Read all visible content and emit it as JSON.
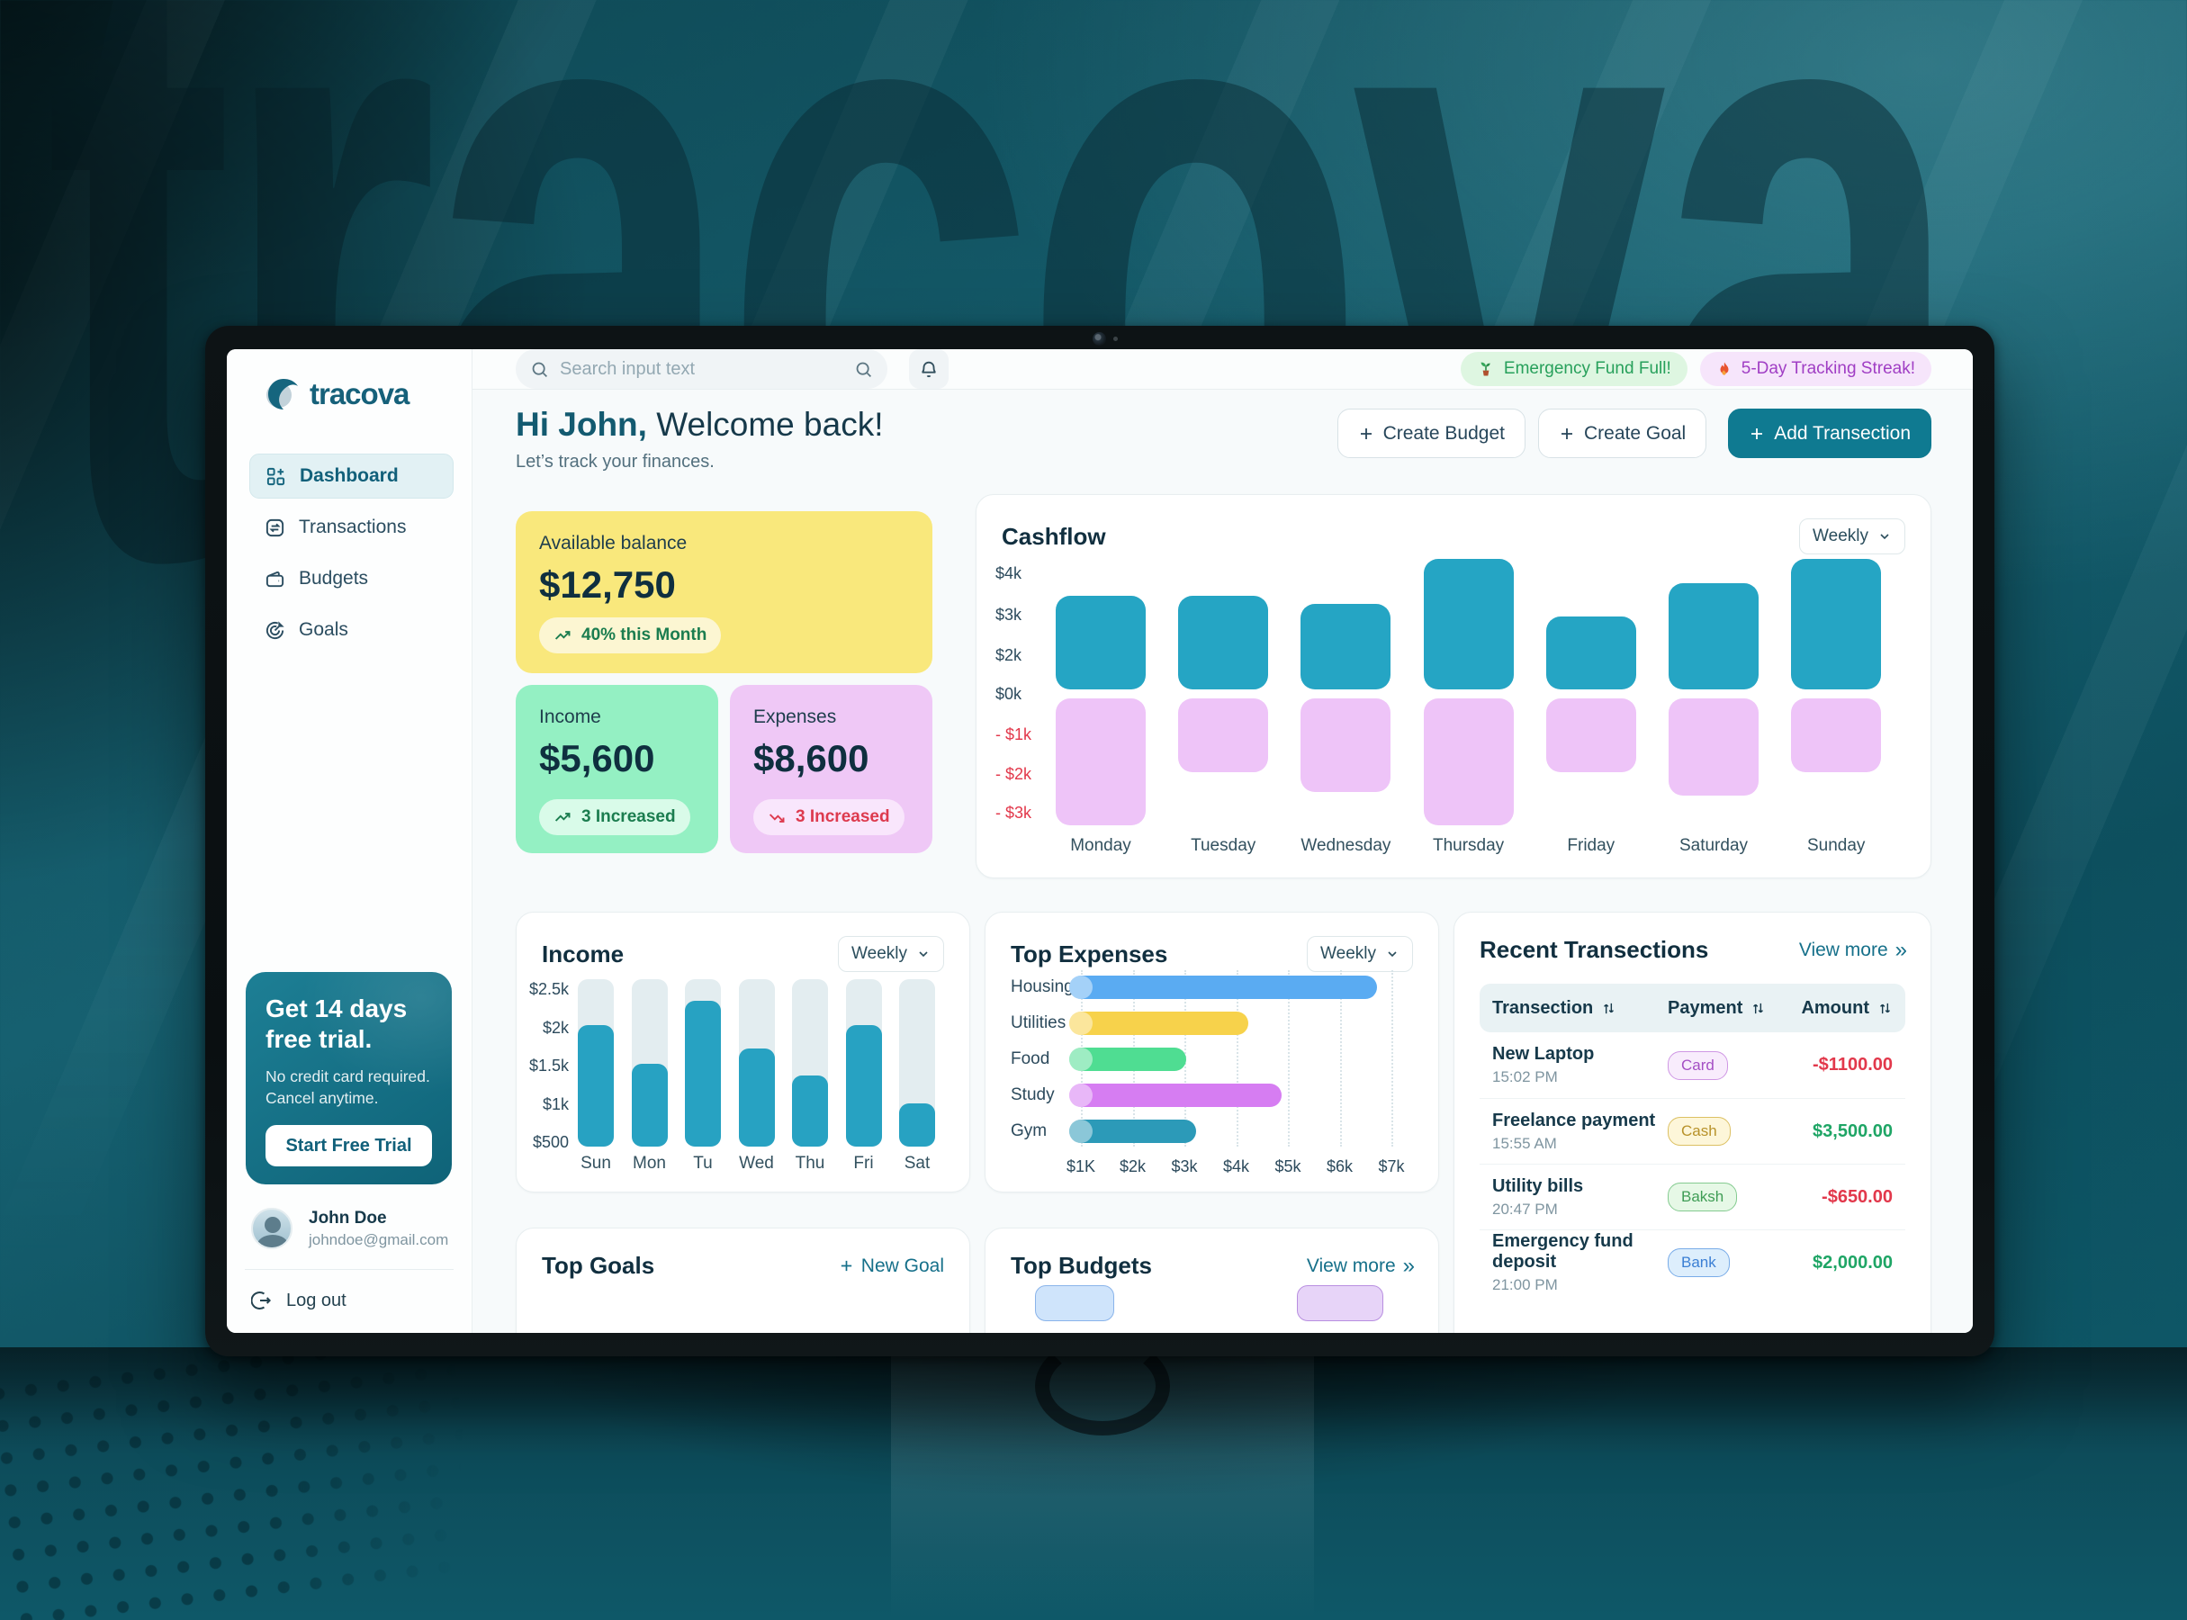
{
  "background": {
    "watermark": "tracova"
  },
  "sidebar": {
    "logo_text": "tracova",
    "nav": [
      {
        "label": "Dashboard",
        "active": true
      },
      {
        "label": "Transactions",
        "active": false
      },
      {
        "label": "Budgets",
        "active": false
      },
      {
        "label": "Goals",
        "active": false
      }
    ],
    "trial": {
      "title_line1": "Get 14 days",
      "title_line2": "free trial.",
      "body_line1": "No credit card required.",
      "body_line2": "Cancel anytime.",
      "button": "Start Free Trial"
    },
    "user": {
      "name": "John Doe",
      "email": "johndoe@gmail.com"
    },
    "logout_label": "Log out"
  },
  "topbar": {
    "search_placeholder": "Search input text",
    "badges": [
      {
        "icon": "plant-icon",
        "label": "Emergency Fund Full!",
        "type": "green"
      },
      {
        "icon": "flame-icon",
        "label": "5-Day Tracking Streak!",
        "type": "purple"
      }
    ]
  },
  "header": {
    "greeting_name": "Hi John,",
    "greeting_rest": " Welcome back!",
    "subtitle": "Let’s track your finances.",
    "buttons": {
      "create_budget": "Create Budget",
      "create_goal": "Create Goal",
      "add_transaction": "Add Transection"
    }
  },
  "summary_cards": {
    "balance": {
      "label": "Available balance",
      "value": "$12,750",
      "badge": "40% this Month",
      "trend": "up"
    },
    "income": {
      "label": "Income",
      "value": "$5,600",
      "badge": "3 Increased",
      "trend": "up"
    },
    "expenses": {
      "label": "Expenses",
      "value": "$8,600",
      "badge": "3 Increased",
      "trend": "down"
    }
  },
  "chart_data": [
    {
      "id": "cashflow",
      "type": "bar",
      "title": "Cashflow",
      "period_selector": "Weekly",
      "categories": [
        "Monday",
        "Tuesday",
        "Wednesday",
        "Thursday",
        "Friday",
        "Saturday",
        "Sunday"
      ],
      "series": [
        {
          "name": "inflow",
          "color": "#25a5c4",
          "values": [
            3350,
            3350,
            3150,
            4250,
            2850,
            3650,
            4250
          ]
        },
        {
          "name": "outflow",
          "color": "#eec4f8",
          "values": [
            -3200,
            -1850,
            -2350,
            -3200,
            -1850,
            -2450,
            -1850
          ]
        }
      ],
      "yticks_pos": [
        {
          "label": "$4k",
          "value": 4000
        },
        {
          "label": "$3k",
          "value": 3000
        },
        {
          "label": "$2k",
          "value": 2000
        },
        {
          "label": "$0k",
          "value": 0
        }
      ],
      "yticks_neg": [
        {
          "label": "- $1k",
          "value": -1000
        },
        {
          "label": "- $2k",
          "value": -2000
        },
        {
          "label": "- $3k",
          "value": -3000
        }
      ],
      "legend": "none",
      "grid": false
    },
    {
      "id": "income",
      "type": "bar",
      "title": "Income",
      "period_selector": "Weekly",
      "categories": [
        "Sun",
        "Mon",
        "Tu",
        "Wed",
        "Thu",
        "Fri",
        "Sat"
      ],
      "values": [
        2050,
        1550,
        2350,
        1750,
        1400,
        2050,
        1050
      ],
      "yticks": [
        "$2.5k",
        "$2k",
        "$1.5k",
        "$1k",
        "$500"
      ],
      "ymin": 500,
      "ymax": 2630,
      "bar_color": "#27a2c2",
      "track_color": "#e3edf0",
      "grid": false
    },
    {
      "id": "top_expenses",
      "type": "bar",
      "title": "Top Expenses",
      "period_selector": "Weekly",
      "categories": [
        "Housing",
        "Utilities",
        "Food",
        "Study",
        "Gym"
      ],
      "values": [
        6500,
        4000,
        2800,
        4650,
        3000
      ],
      "colors": [
        "#5aabf2",
        "#f7d24b",
        "#4fdd92",
        "#d67df2",
        "#2c9ab8"
      ],
      "xticks": [
        "$1K",
        "$2k",
        "$3k",
        "$4k",
        "$5k",
        "$6k",
        "$7k"
      ],
      "xmin": 1000,
      "xmax": 7000,
      "orientation": "horizontal",
      "grid": true
    }
  ],
  "transactions": {
    "title": "Recent Transections",
    "view_more": "View more",
    "columns": [
      "Transection",
      "Payment",
      "Amount"
    ],
    "rows": [
      {
        "name": "New Laptop",
        "time": "15:02 PM",
        "method": "Card",
        "method_color": "purple",
        "amount": "-$1100.00",
        "amount_color": "red"
      },
      {
        "name": "Freelance payment",
        "time": "15:55 AM",
        "method": "Cash",
        "method_color": "yellow",
        "amount": "$3,500.00",
        "amount_color": "green"
      },
      {
        "name": "Utility bills",
        "time": "20:47 PM",
        "method": "Baksh",
        "method_color": "green",
        "amount": "-$650.00",
        "amount_color": "red"
      },
      {
        "name": "Emergency fund deposit",
        "time": "21:00 PM",
        "method": "Bank",
        "method_color": "blue",
        "amount": "$2,000.00",
        "amount_color": "green"
      }
    ]
  },
  "bottom_cards": {
    "goals": {
      "title": "Top Goals",
      "action": "New Goal"
    },
    "budgets": {
      "title": "Top Budgets",
      "action": "View more"
    }
  }
}
